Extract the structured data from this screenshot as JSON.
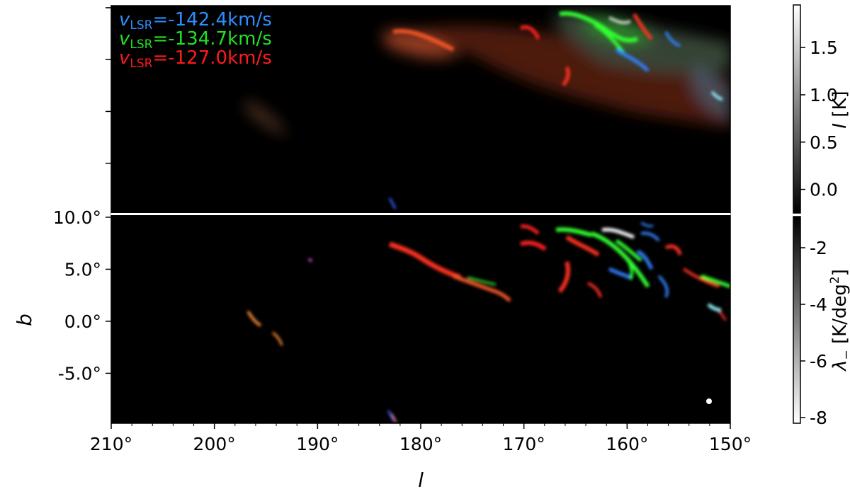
{
  "chart_data": {
    "type": "image",
    "panels": [
      {
        "id": "top",
        "quantity": "intensity",
        "legend": [
          {
            "prefix": "v",
            "sub": "LSR",
            "value": "=-142.4km/s",
            "color": "#2b8fff"
          },
          {
            "prefix": "v",
            "sub": "LSR",
            "value": "=-134.7km/s",
            "color": "#22e022"
          },
          {
            "prefix": "v",
            "sub": "LSR",
            "value": "=-127.0km/s",
            "color": "#ff1a1a"
          }
        ],
        "colorbar": {
          "label_italic": "I",
          "label_rest": " [K]",
          "range": [
            -0.25,
            1.95
          ],
          "ticks": [
            1.5,
            1.0,
            0.5,
            0.0
          ],
          "tick_labels": [
            "1.5",
            "1.0",
            "0.5",
            "0.0"
          ],
          "cmap": "gray"
        }
      },
      {
        "id": "bottom",
        "quantity": "lambda_minus",
        "colorbar": {
          "label_prefix": "λ",
          "label_sub": "−",
          "label_rest": "  [K/deg",
          "label_sup": "2",
          "label_end": "]",
          "range": [
            -8.2,
            -0.9
          ],
          "ticks": [
            -2,
            -4,
            -6,
            -8
          ],
          "tick_labels": [
            "-2",
            "-4",
            "-6",
            "-8"
          ],
          "cmap": "gray_r"
        }
      }
    ],
    "x": {
      "label": "l",
      "lim": [
        210,
        150
      ],
      "ticks": [
        210,
        200,
        190,
        180,
        170,
        160,
        150
      ],
      "tick_labels": [
        "210°",
        "200°",
        "190°",
        "180°",
        "170°",
        "160°",
        "150°"
      ]
    },
    "y": {
      "label": "b",
      "lim": [
        -9.8,
        10.2
      ],
      "ticks": [
        10.0,
        5.0,
        0.0,
        -5.0
      ],
      "tick_labels": [
        "10.0°",
        "5.0°",
        "0.0°",
        "-5.0°"
      ]
    },
    "beam_marker": {
      "l": 152,
      "b": -7.8
    },
    "features": [
      {
        "color": "red",
        "l": 181.5,
        "b": 6.8
      },
      {
        "color": "red",
        "l": 178.5,
        "b": 5.8
      },
      {
        "color": "red",
        "l": 175.5,
        "b": 4.3
      },
      {
        "color": "red",
        "l": 173,
        "b": 3.3
      },
      {
        "color": "red",
        "l": 167.5,
        "b": 7.5
      },
      {
        "color": "red",
        "l": 164.5,
        "b": 5.0
      },
      {
        "color": "red",
        "l": 165.5,
        "b": 3.0
      },
      {
        "color": "red",
        "l": 162.5,
        "b": 8.7
      },
      {
        "color": "red",
        "l": 155.5,
        "b": 6.0
      },
      {
        "color": "red",
        "l": 153,
        "b": 4.5
      },
      {
        "color": "green",
        "l": 162.5,
        "b": 7.8
      },
      {
        "color": "green",
        "l": 160,
        "b": 6.5
      },
      {
        "color": "green",
        "l": 158,
        "b": 5.0
      },
      {
        "color": "green",
        "l": 152,
        "b": 3.5
      },
      {
        "color": "blue",
        "l": 160.5,
        "b": 8.0
      },
      {
        "color": "blue",
        "l": 157.5,
        "b": 5.2
      },
      {
        "color": "blue",
        "l": 153.5,
        "b": 4.0
      },
      {
        "color": "cyan",
        "l": 151,
        "b": 1.0
      },
      {
        "color": "white",
        "l": 161.5,
        "b": 8.3
      },
      {
        "color": "orange",
        "l": 195.5,
        "b": 0.2
      },
      {
        "color": "orange",
        "l": 193.5,
        "b": -1.5
      }
    ]
  }
}
